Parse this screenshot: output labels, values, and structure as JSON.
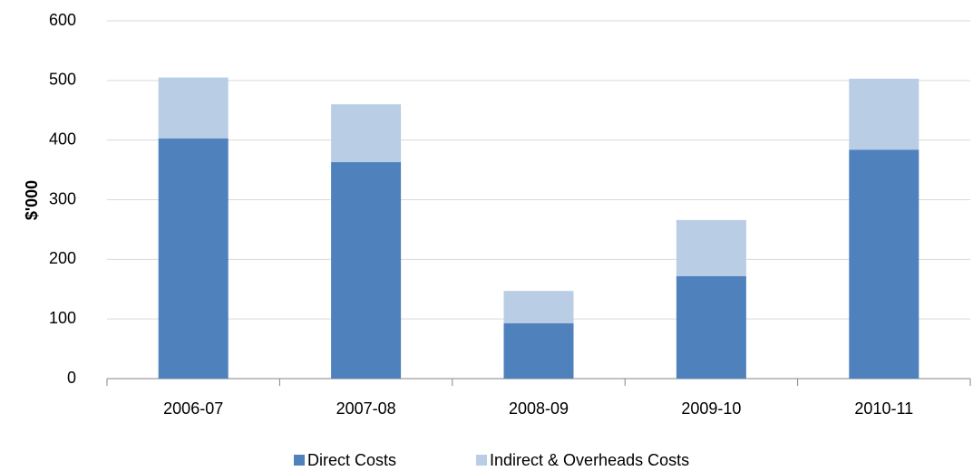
{
  "chart_data": {
    "type": "stacked_bar",
    "y_label": "$'000",
    "categories": [
      "2006-07",
      "2007-08",
      "2008-09",
      "2009-10",
      "2010-11"
    ],
    "series": [
      {
        "name": "Direct Costs",
        "color": "#4f81bd",
        "values": [
          403,
          363,
          93,
          172,
          384
        ]
      },
      {
        "name": "Indirect & Overheads Costs",
        "color": "#b9cde5",
        "values": [
          102,
          97,
          54,
          94,
          119
        ]
      }
    ],
    "ylim": [
      0,
      600
    ],
    "yticks": [
      0,
      100,
      200,
      300,
      400,
      500,
      600
    ],
    "grid": true,
    "legend": "bottom"
  }
}
